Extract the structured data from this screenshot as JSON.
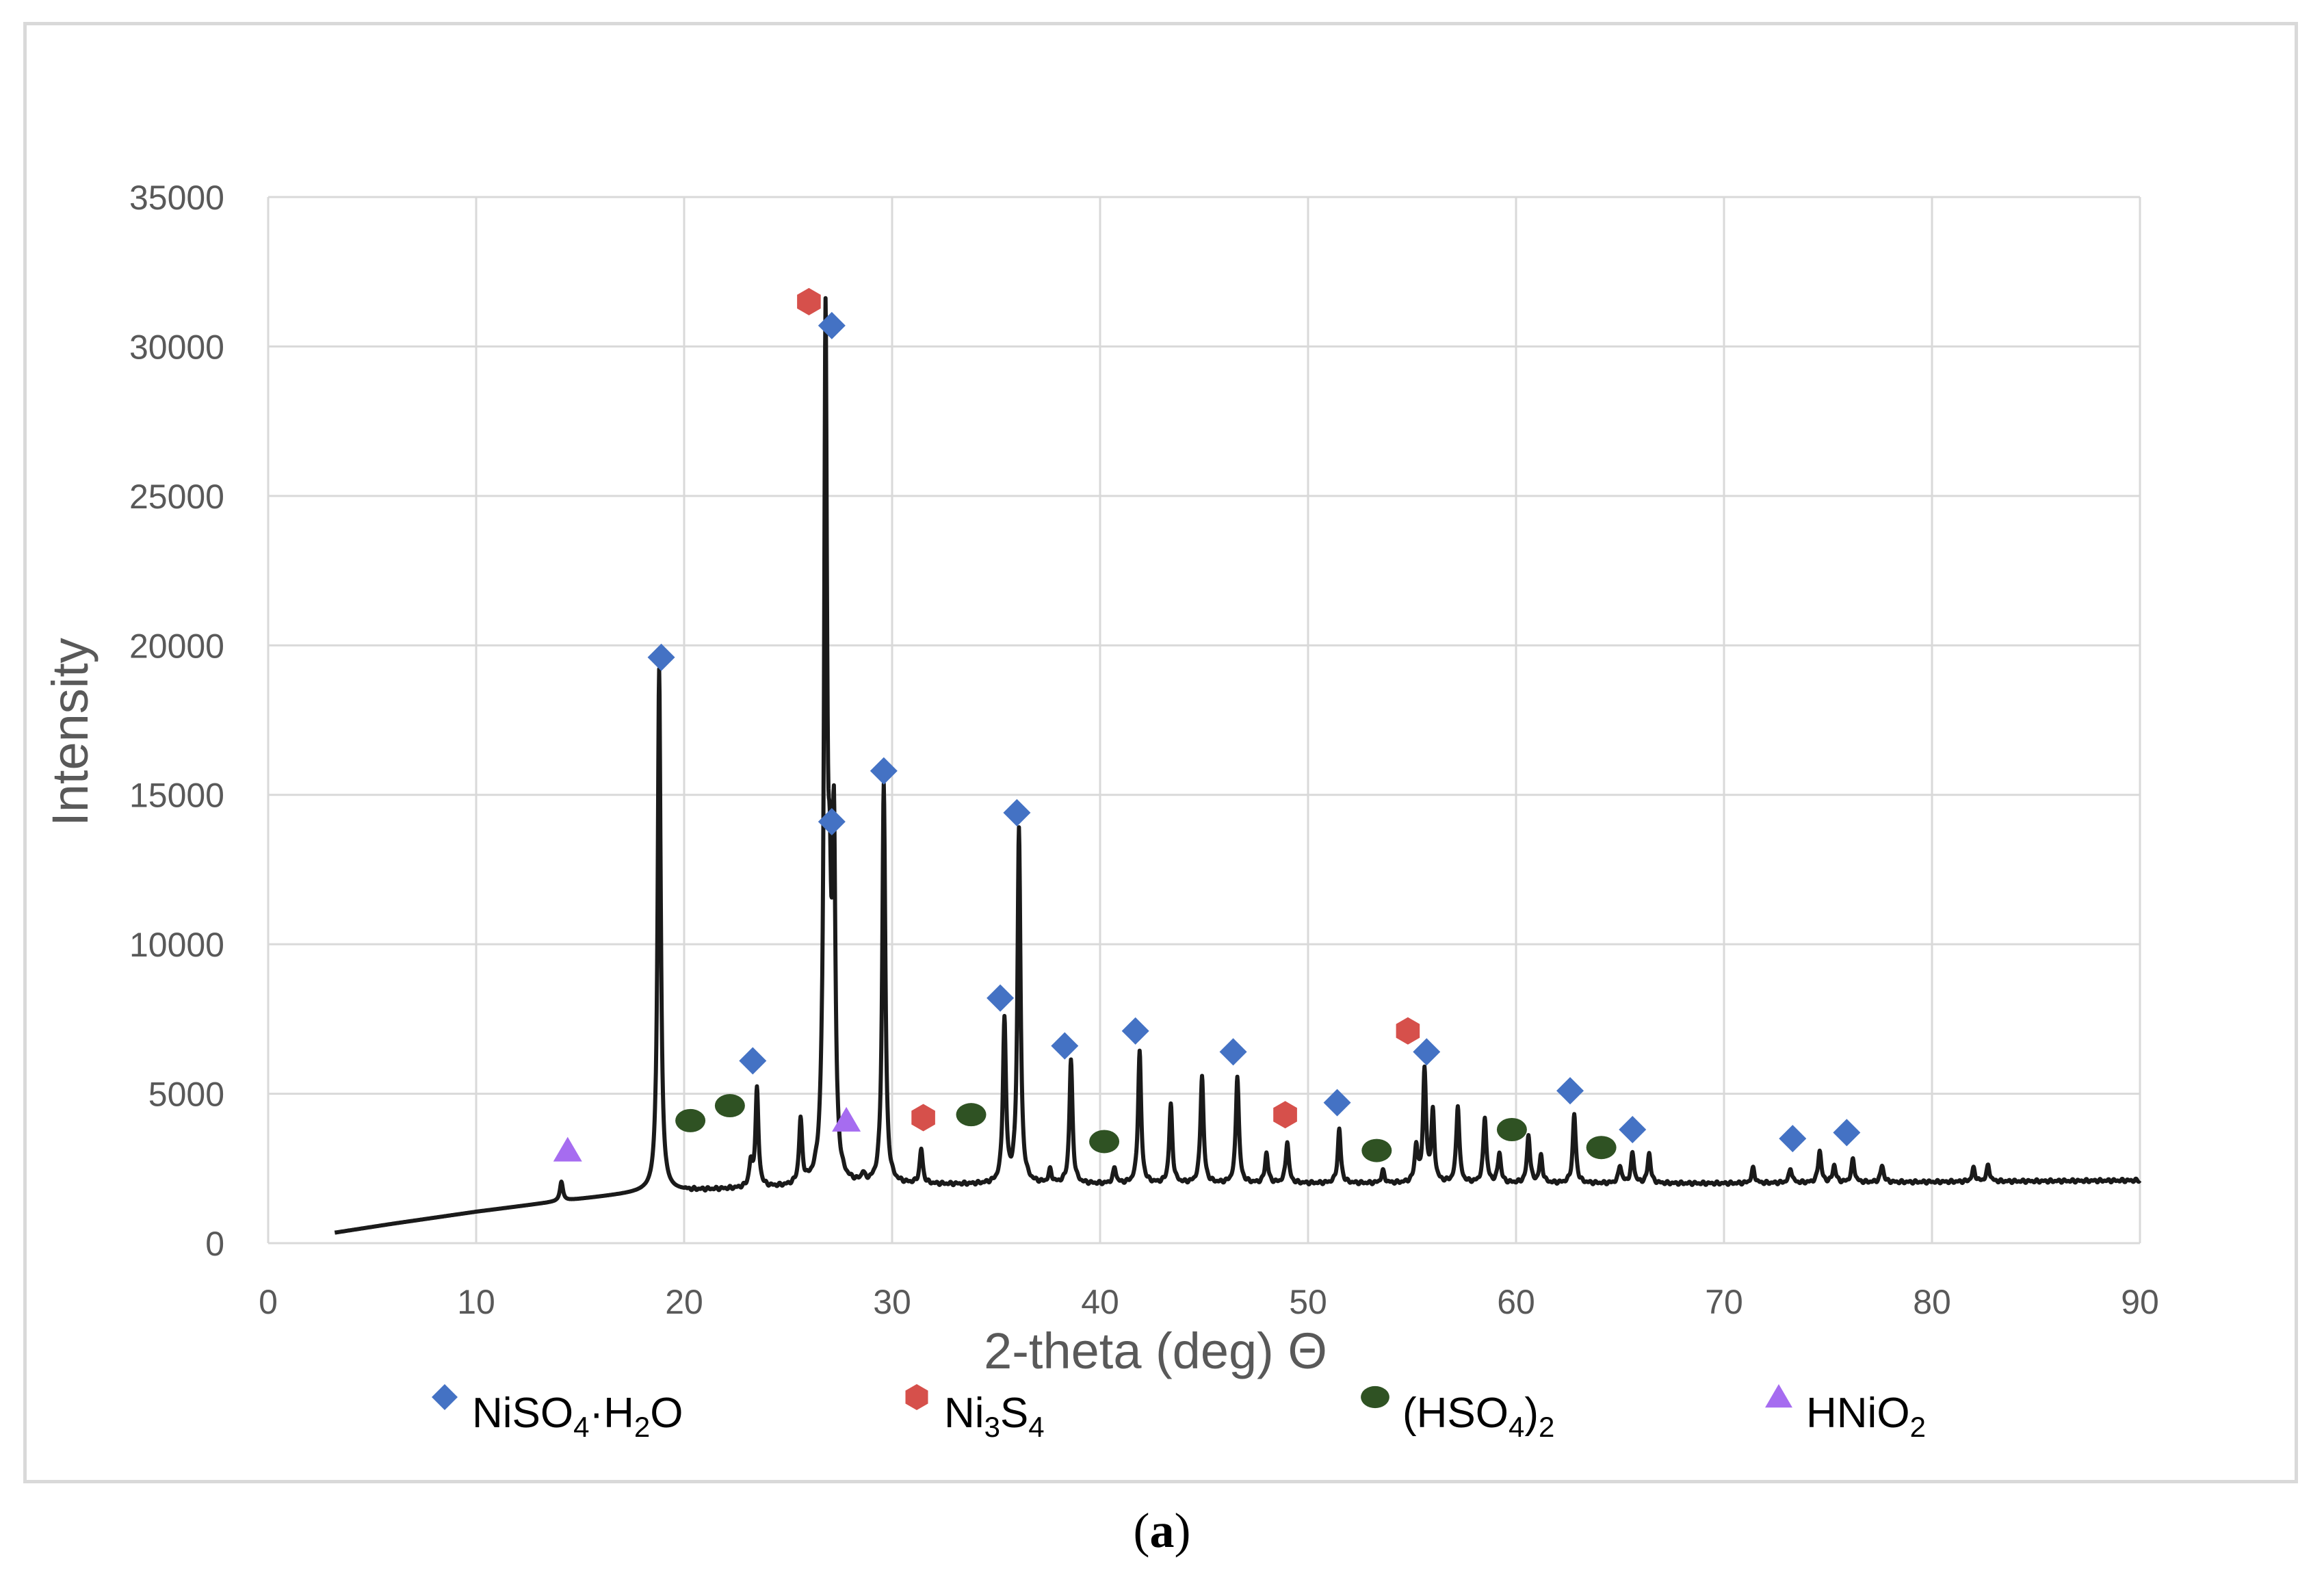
{
  "chart_data": {
    "type": "line",
    "title": "",
    "xlabel": "2-theta (deg) Θ",
    "ylabel": "Intensity",
    "xlim": [
      0,
      90
    ],
    "ylim": [
      0,
      35000
    ],
    "xticks": [
      0,
      10,
      20,
      30,
      40,
      50,
      60,
      70,
      80,
      90
    ],
    "yticks": [
      0,
      5000,
      10000,
      15000,
      20000,
      25000,
      30000,
      35000
    ],
    "grid": true,
    "line_color": "#1a1a1a",
    "background_level": [
      [
        3.2,
        350
      ],
      [
        6,
        650
      ],
      [
        10,
        1050
      ],
      [
        14,
        1400
      ],
      [
        18,
        1700
      ],
      [
        22,
        1800
      ],
      [
        30,
        1950
      ],
      [
        50,
        2000
      ],
      [
        70,
        2000
      ],
      [
        90,
        2100
      ]
    ],
    "peaks": [
      {
        "x": 14.1,
        "y": 2050
      },
      {
        "x": 18.8,
        "y": 19200
      },
      {
        "x": 23.2,
        "y": 2600
      },
      {
        "x": 23.5,
        "y": 5100
      },
      {
        "x": 25.6,
        "y": 4000
      },
      {
        "x": 26.8,
        "y": 30100
      },
      {
        "x": 27.0,
        "y": 8200
      },
      {
        "x": 27.2,
        "y": 13000
      },
      {
        "x": 28.6,
        "y": 2200
      },
      {
        "x": 29.6,
        "y": 15300
      },
      {
        "x": 31.4,
        "y": 3100
      },
      {
        "x": 35.4,
        "y": 7400
      },
      {
        "x": 36.1,
        "y": 13800
      },
      {
        "x": 37.6,
        "y": 2400
      },
      {
        "x": 38.6,
        "y": 6100
      },
      {
        "x": 40.7,
        "y": 2500
      },
      {
        "x": 41.9,
        "y": 6400
      },
      {
        "x": 43.4,
        "y": 4600
      },
      {
        "x": 44.9,
        "y": 5600
      },
      {
        "x": 46.6,
        "y": 5600
      },
      {
        "x": 48.0,
        "y": 3000
      },
      {
        "x": 49.0,
        "y": 3400
      },
      {
        "x": 51.5,
        "y": 3800
      },
      {
        "x": 53.6,
        "y": 2400
      },
      {
        "x": 55.2,
        "y": 3200
      },
      {
        "x": 55.6,
        "y": 5700
      },
      {
        "x": 56.0,
        "y": 4300
      },
      {
        "x": 57.2,
        "y": 4600
      },
      {
        "x": 58.5,
        "y": 4200
      },
      {
        "x": 59.2,
        "y": 3000
      },
      {
        "x": 60.6,
        "y": 3600
      },
      {
        "x": 61.2,
        "y": 2900
      },
      {
        "x": 62.8,
        "y": 4300
      },
      {
        "x": 65.0,
        "y": 2600
      },
      {
        "x": 65.6,
        "y": 3000
      },
      {
        "x": 66.4,
        "y": 3000
      },
      {
        "x": 71.4,
        "y": 2500
      },
      {
        "x": 73.2,
        "y": 2500
      },
      {
        "x": 74.6,
        "y": 3100
      },
      {
        "x": 75.3,
        "y": 2600
      },
      {
        "x": 76.2,
        "y": 2800
      },
      {
        "x": 77.6,
        "y": 2600
      },
      {
        "x": 82.0,
        "y": 2500
      },
      {
        "x": 82.7,
        "y": 2600
      }
    ],
    "annotations": [
      {
        "phase": "NiSO4·H2O",
        "x": 18.9,
        "y": 19600
      },
      {
        "phase": "NiSO4·H2O",
        "x": 23.3,
        "y": 6100
      },
      {
        "phase": "NiSO4·H2O",
        "x": 27.1,
        "y": 30700
      },
      {
        "phase": "NiSO4·H2O",
        "x": 27.1,
        "y": 14100
      },
      {
        "phase": "NiSO4·H2O",
        "x": 29.6,
        "y": 15800
      },
      {
        "phase": "NiSO4·H2O",
        "x": 35.2,
        "y": 8200
      },
      {
        "phase": "NiSO4·H2O",
        "x": 36.0,
        "y": 14400
      },
      {
        "phase": "NiSO4·H2O",
        "x": 38.3,
        "y": 6600
      },
      {
        "phase": "NiSO4·H2O",
        "x": 41.7,
        "y": 7100
      },
      {
        "phase": "NiSO4·H2O",
        "x": 46.4,
        "y": 6400
      },
      {
        "phase": "NiSO4·H2O",
        "x": 51.4,
        "y": 4700
      },
      {
        "phase": "NiSO4·H2O",
        "x": 55.7,
        "y": 6400
      },
      {
        "phase": "NiSO4·H2O",
        "x": 62.6,
        "y": 5100
      },
      {
        "phase": "NiSO4·H2O",
        "x": 65.6,
        "y": 3800
      },
      {
        "phase": "NiSO4·H2O",
        "x": 73.3,
        "y": 3500
      },
      {
        "phase": "NiSO4·H2O",
        "x": 75.9,
        "y": 3700
      },
      {
        "phase": "Ni3S4",
        "x": 26.0,
        "y": 31500
      },
      {
        "phase": "Ni3S4",
        "x": 31.5,
        "y": 4200
      },
      {
        "phase": "Ni3S4",
        "x": 48.9,
        "y": 4300
      },
      {
        "phase": "Ni3S4",
        "x": 54.8,
        "y": 7100
      },
      {
        "phase": "(HSO4)2",
        "x": 20.3,
        "y": 4100
      },
      {
        "phase": "(HSO4)2",
        "x": 22.2,
        "y": 4600
      },
      {
        "phase": "(HSO4)2",
        "x": 33.8,
        "y": 4300
      },
      {
        "phase": "(HSO4)2",
        "x": 40.2,
        "y": 3400
      },
      {
        "phase": "(HSO4)2",
        "x": 53.3,
        "y": 3100
      },
      {
        "phase": "(HSO4)2",
        "x": 59.8,
        "y": 3800
      },
      {
        "phase": "(HSO4)2",
        "x": 64.1,
        "y": 3200
      },
      {
        "phase": "HNiO2",
        "x": 14.4,
        "y": 3100
      },
      {
        "phase": "HNiO2",
        "x": 27.8,
        "y": 4100
      }
    ]
  },
  "legend": [
    {
      "phase": "NiSO4·H2O",
      "marker": "diamond",
      "color": "#4472c4",
      "parts": [
        [
          "NiSO",
          ""
        ],
        [
          "4",
          "sub"
        ],
        [
          "·H",
          ""
        ],
        [
          "2",
          "sub"
        ],
        [
          "O",
          ""
        ]
      ]
    },
    {
      "phase": "Ni3S4",
      "marker": "hexagon",
      "color": "#d6504b",
      "parts": [
        [
          "Ni",
          ""
        ],
        [
          "3",
          "sub"
        ],
        [
          "S",
          ""
        ],
        [
          "4",
          "sub"
        ]
      ]
    },
    {
      "phase": "(HSO4)2",
      "marker": "ellipse",
      "color": "#2f5223",
      "parts": [
        [
          "(HSO",
          ""
        ],
        [
          "4",
          "sub"
        ],
        [
          ")",
          ""
        ],
        [
          "2",
          "sub"
        ]
      ]
    },
    {
      "phase": "HNiO2",
      "marker": "triangle",
      "color": "#a66cf0",
      "parts": [
        [
          "HNiO",
          ""
        ],
        [
          "2",
          "sub"
        ]
      ]
    }
  ],
  "caption": {
    "open": "(",
    "label": "a",
    "close": ")"
  }
}
